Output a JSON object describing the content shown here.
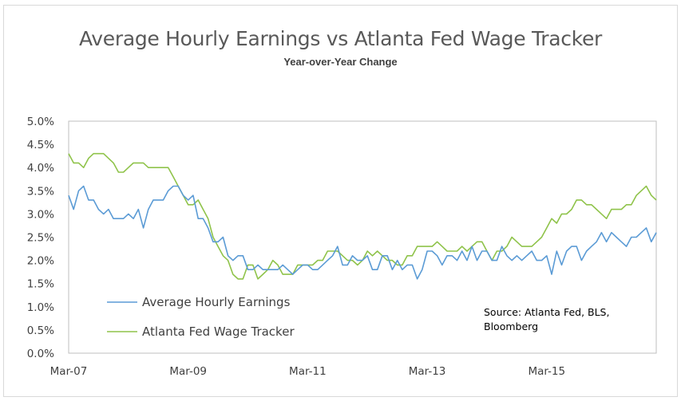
{
  "chart_data": {
    "type": "line",
    "title": "Average Hourly Earnings  vs Atlanta Fed Wage Tracker",
    "subtitle": "Year-over-Year  Change",
    "xlabel": "",
    "ylabel": "",
    "x_tick_labels": [
      "Mar-07",
      "Mar-09",
      "Mar-11",
      "Mar-13",
      "Mar-15"
    ],
    "y_tick_labels": [
      "0.0%",
      "0.5%",
      "1.0%",
      "1.5%",
      "2.0%",
      "2.5%",
      "3.0%",
      "3.5%",
      "4.0%",
      "4.5%",
      "5.0%"
    ],
    "ylim": [
      0,
      5.0
    ],
    "x_period": "monthly, Mar-07 to Nov-16",
    "grid": false,
    "legend_position": "bottom-left",
    "annotation": "Source: Atlanta Fed, BLS,\nBloomberg",
    "series": [
      {
        "name": "Average Hourly Earnings",
        "color": "#5b9bd5",
        "values": [
          3.4,
          3.1,
          3.5,
          3.6,
          3.3,
          3.3,
          3.1,
          3.0,
          3.1,
          2.9,
          2.9,
          2.9,
          3.0,
          2.9,
          3.1,
          2.7,
          3.1,
          3.3,
          3.3,
          3.3,
          3.5,
          3.6,
          3.6,
          3.4,
          3.3,
          3.4,
          2.9,
          2.9,
          2.7,
          2.4,
          2.4,
          2.5,
          2.1,
          2.0,
          2.1,
          2.1,
          1.8,
          1.8,
          1.9,
          1.8,
          1.8,
          1.8,
          1.8,
          1.9,
          1.8,
          1.7,
          1.8,
          1.9,
          1.9,
          1.8,
          1.8,
          1.9,
          2.0,
          2.1,
          2.3,
          1.9,
          1.9,
          2.1,
          2.0,
          2.0,
          2.1,
          1.8,
          1.8,
          2.1,
          2.1,
          1.8,
          2.0,
          1.8,
          1.9,
          1.9,
          1.6,
          1.8,
          2.2,
          2.2,
          2.1,
          1.9,
          2.1,
          2.1,
          2.0,
          2.2,
          2.0,
          2.3,
          2.0,
          2.2,
          2.2,
          2.0,
          2.0,
          2.3,
          2.1,
          2.0,
          2.1,
          2.0,
          2.1,
          2.2,
          2.0,
          2.0,
          2.1,
          1.7,
          2.2,
          1.9,
          2.2,
          2.3,
          2.3,
          2.0,
          2.2,
          2.3,
          2.4,
          2.6,
          2.4,
          2.6,
          2.5,
          2.4,
          2.3,
          2.5,
          2.5,
          2.6,
          2.7,
          2.4,
          2.6
        ]
      },
      {
        "name": "Atlanta Fed Wage Tracker",
        "color": "#8fc34a",
        "values": [
          4.3,
          4.1,
          4.1,
          4.0,
          4.2,
          4.3,
          4.3,
          4.3,
          4.2,
          4.1,
          3.9,
          3.9,
          4.0,
          4.1,
          4.1,
          4.1,
          4.0,
          4.0,
          4.0,
          4.0,
          4.0,
          3.8,
          3.6,
          3.4,
          3.2,
          3.2,
          3.3,
          3.1,
          2.9,
          2.5,
          2.3,
          2.1,
          2.0,
          1.7,
          1.6,
          1.6,
          1.9,
          1.9,
          1.6,
          1.7,
          1.8,
          2.0,
          1.9,
          1.7,
          1.7,
          1.7,
          1.9,
          1.9,
          1.9,
          1.9,
          2.0,
          2.0,
          2.2,
          2.2,
          2.2,
          2.1,
          2.0,
          2.0,
          1.9,
          2.0,
          2.2,
          2.1,
          2.2,
          2.1,
          2.0,
          2.0,
          1.9,
          1.9,
          2.1,
          2.1,
          2.3,
          2.3,
          2.3,
          2.3,
          2.4,
          2.3,
          2.2,
          2.2,
          2.2,
          2.3,
          2.2,
          2.3,
          2.4,
          2.4,
          2.2,
          2.0,
          2.2,
          2.2,
          2.3,
          2.5,
          2.4,
          2.3,
          2.3,
          2.3,
          2.4,
          2.5,
          2.7,
          2.9,
          2.8,
          3.0,
          3.0,
          3.1,
          3.3,
          3.3,
          3.2,
          3.2,
          3.1,
          3.0,
          2.9,
          3.1,
          3.1,
          3.1,
          3.2,
          3.2,
          3.4,
          3.5,
          3.6,
          3.4,
          3.3
        ]
      }
    ]
  }
}
